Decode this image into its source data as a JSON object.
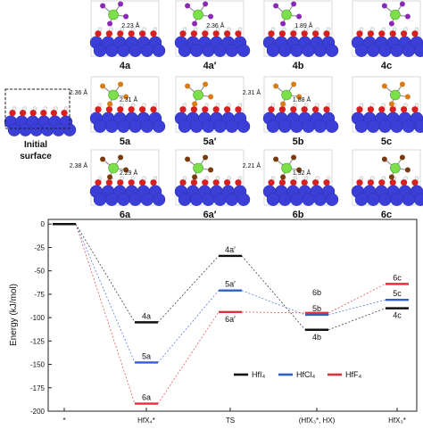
{
  "panels": {
    "initial_label_line1": "Initial",
    "initial_label_line2": "surface",
    "rows": [
      [
        {
          "label": "4a",
          "halogen": "#8a2ab5",
          "annotations": [
            "2.23 Å"
          ]
        },
        {
          "label": "4a′",
          "halogen": "#8a2ab5",
          "annotations": [
            "2.36 Å"
          ]
        },
        {
          "label": "4b",
          "halogen": "#8a2ab5",
          "annotations": [
            "1.89 Å"
          ]
        },
        {
          "label": "4c",
          "halogen": "#8a2ab5",
          "annotations": []
        }
      ],
      [
        {
          "label": "5a",
          "halogen": "#d97b16",
          "annotations": [
            "2.36 Å",
            "2.31 Å"
          ]
        },
        {
          "label": "5a′",
          "halogen": "#d97b16",
          "annotations": []
        },
        {
          "label": "5b",
          "halogen": "#d97b16",
          "annotations": [
            "2.31 Å",
            "1.88 Å"
          ]
        },
        {
          "label": "5c",
          "halogen": "#d97b16",
          "annotations": []
        }
      ],
      [
        {
          "label": "6a",
          "halogen": "#7a3a10",
          "annotations": [
            "2.38 Å",
            "2.29 Å"
          ]
        },
        {
          "label": "6a′",
          "halogen": "#7a3a10",
          "annotations": []
        },
        {
          "label": "6b",
          "halogen": "#7a3a10",
          "annotations": [
            "2.21 Å",
            "1.92 Å"
          ]
        },
        {
          "label": "6c",
          "halogen": "#7a3a10",
          "annotations": []
        }
      ]
    ]
  },
  "chart_data": {
    "type": "line",
    "ylabel": "Energy (kJ/mol)",
    "ylim": [
      -200,
      5
    ],
    "yticks": [
      0,
      -25,
      -50,
      -75,
      -100,
      -125,
      -150,
      -175,
      -200
    ],
    "categories": [
      "*",
      "HfX₄*",
      "TS",
      "(HfX₃*, HX)",
      "HfX₃*"
    ],
    "reference": {
      "category": "*",
      "value": 0
    },
    "series": [
      {
        "name": "HfI₄",
        "color": "#111111",
        "values": [
          0,
          -105,
          -34,
          -113,
          -90
        ],
        "labels": [
          "",
          "4a",
          "4a′",
          "4b",
          "4c"
        ]
      },
      {
        "name": "HfCl₄",
        "color": "#2f5fcf",
        "values": [
          0,
          -148,
          -71,
          -97,
          -81
        ],
        "labels": [
          "",
          "5a",
          "5a′",
          "5b",
          "5c"
        ]
      },
      {
        "name": "HfF₄",
        "color": "#e0303a",
        "values": [
          0,
          -192,
          -94,
          -95,
          -64
        ],
        "labels": [
          "",
          "6a",
          "6a′",
          "6b",
          "6c"
        ]
      }
    ],
    "legend": "lower-right"
  }
}
